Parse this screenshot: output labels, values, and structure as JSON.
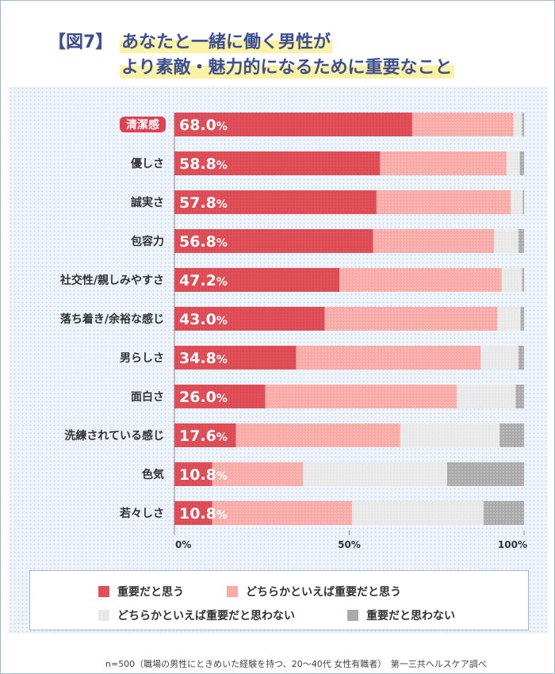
{
  "header": {
    "figure_label": "【図7】",
    "title_line1": "あなたと一緒に働く男性が",
    "title_line2": "より素敵・魅力的になるために重要なこと"
  },
  "colors": {
    "important": "#e14f58",
    "somewhat_important": "#f9aaa6",
    "somewhat_not_important": "#e8e8e8",
    "not_important": "#aaaaaa",
    "highlight_label": "#e04050"
  },
  "legend": {
    "items": [
      {
        "label": "重要だと思う",
        "color": "#e14f58"
      },
      {
        "label": "どちらかといえば重要だと思う",
        "color": "#f9aaa6"
      },
      {
        "label": "どちらかといえば重要だと思わない",
        "color": "#e8e8e8"
      },
      {
        "label": "重要だと思わない",
        "color": "#aaaaaa"
      }
    ]
  },
  "footnote": "n=500（職場の男性にときめいた経験を持つ、20〜40代 女性有職者）　第一三共ヘルスケア調べ",
  "chart_data": {
    "type": "bar",
    "orientation": "horizontal",
    "stacked": true,
    "categories": [
      "清潔感",
      "優しさ",
      "誠実さ",
      "包容力",
      "社交性/親しみやすさ",
      "落ち着き/余裕な感じ",
      "男らしさ",
      "面白さ",
      "洗練されている感じ",
      "色気",
      "若々しさ"
    ],
    "highlighted_category": "清潔感",
    "series": [
      {
        "name": "重要だと思う",
        "values": [
          68.0,
          58.8,
          57.8,
          56.8,
          47.2,
          43.0,
          34.8,
          26.0,
          17.6,
          10.8,
          10.8
        ]
      },
      {
        "name": "どちらかといえば重要だと思う",
        "values": [
          29.0,
          36.2,
          38.4,
          34.6,
          46.4,
          49.4,
          52.8,
          54.8,
          47.0,
          26.0,
          40.0
        ]
      },
      {
        "name": "どちらかといえば重要だと思わない",
        "values": [
          2.4,
          3.8,
          3.4,
          7.0,
          5.8,
          6.6,
          10.8,
          16.8,
          28.4,
          41.2,
          37.6
        ]
      },
      {
        "name": "重要だと思わない",
        "values": [
          0.6,
          1.2,
          0.4,
          1.6,
          0.6,
          1.0,
          1.6,
          2.4,
          7.0,
          22.0,
          11.6
        ]
      }
    ],
    "value_labels": [
      "68.0",
      "58.8",
      "57.8",
      "56.8",
      "47.2",
      "43.0",
      "34.8",
      "26.0",
      "17.6",
      "10.8",
      "10.8"
    ],
    "value_suffix": "%",
    "xlim": [
      0,
      100
    ],
    "xticks": [
      {
        "value": 0,
        "label": "0%"
      },
      {
        "value": 50,
        "label": "50%"
      },
      {
        "value": 100,
        "label": "100%"
      }
    ],
    "legend_position": "bottom"
  }
}
